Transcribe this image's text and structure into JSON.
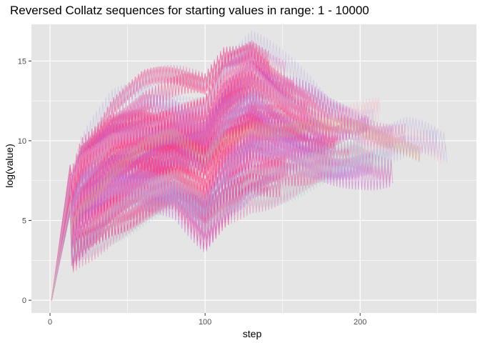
{
  "chart_data": {
    "type": "line",
    "title": "Reversed Collatz sequences for starting values in range: 1 - 10000",
    "xlabel": "step",
    "ylabel": "log(value)",
    "xlim": [
      -12,
      275
    ],
    "ylim": [
      -0.8,
      17.3
    ],
    "x_ticks": [
      0,
      100,
      200
    ],
    "x_tick_labels": [
      "0",
      "100",
      "200"
    ],
    "y_ticks": [
      0,
      5,
      10,
      15
    ],
    "y_tick_labels": [
      "0",
      "5",
      "10",
      "15"
    ],
    "grid": true,
    "legend": "none",
    "panel_background": "#e5e5e5",
    "grid_color": "#ffffff",
    "series_colors": [
      "#f73b7f",
      "#cc66cc",
      "#b4a0e0",
      "#f4b6c8",
      "#b0c8cc",
      "#d9a083",
      "#e070b0"
    ],
    "envelope": {
      "description_points": [
        {
          "step": 1,
          "upper": 0,
          "lower": 0
        },
        {
          "step": 5,
          "upper": 3.3,
          "lower": 1.2
        },
        {
          "step": 12,
          "upper": 7.0,
          "lower": 2.5
        },
        {
          "step": 20,
          "upper": 10.0,
          "lower": 3.2
        },
        {
          "step": 40,
          "upper": 12.5,
          "lower": 4.5
        },
        {
          "step": 60,
          "upper": 13.5,
          "lower": 5.0
        },
        {
          "step": 80,
          "upper": 13.6,
          "lower": 5.4
        },
        {
          "step": 100,
          "upper": 13.8,
          "lower": 3.5
        },
        {
          "step": 112,
          "upper": 15.9,
          "lower": 5.0
        },
        {
          "step": 130,
          "upper": 16.8,
          "lower": 6.5
        },
        {
          "step": 150,
          "upper": 15.0,
          "lower": 7.0
        },
        {
          "step": 180,
          "upper": 12.8,
          "lower": 7.5
        },
        {
          "step": 200,
          "upper": 12.5,
          "lower": 8.0
        },
        {
          "step": 230,
          "upper": 12.5,
          "lower": 8.0
        },
        {
          "step": 262,
          "upper": 9.5,
          "lower": 8.8
        }
      ]
    }
  }
}
